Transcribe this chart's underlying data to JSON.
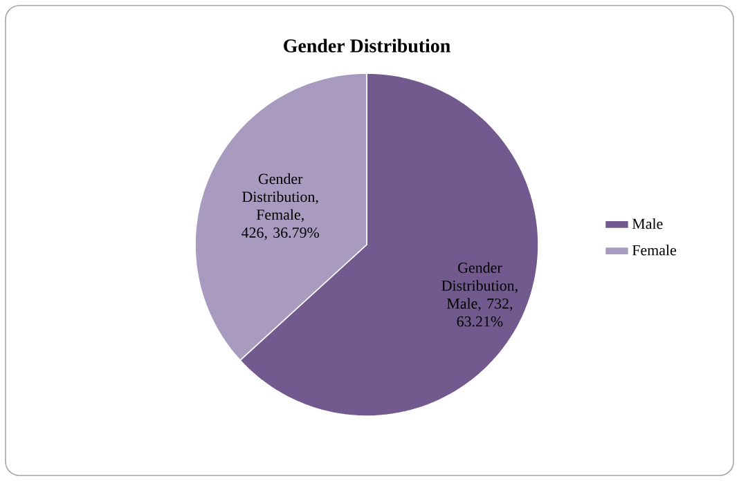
{
  "chart_data": {
    "type": "pie",
    "title": "Gender Distribution",
    "categories": [
      "Male",
      "Female"
    ],
    "values": [
      732,
      426
    ],
    "colors": [
      "#725a8f",
      "#a99bbf"
    ],
    "value_labels": [
      "Gender Distribution, Male, 732, 63.21%",
      "Gender Distribution, Female, 426, 36.79%"
    ],
    "legend": "right"
  }
}
